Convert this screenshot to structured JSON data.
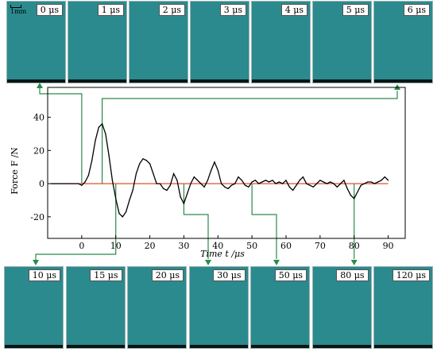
{
  "scale_label": "1mm",
  "top_frames": [
    {
      "label": "0 μs"
    },
    {
      "label": "1 μs"
    },
    {
      "label": "2 μs"
    },
    {
      "label": "3 μs"
    },
    {
      "label": "4 μs"
    },
    {
      "label": "5 μs"
    },
    {
      "label": "6 μs"
    }
  ],
  "bottom_frames": [
    {
      "label": "10 μs"
    },
    {
      "label": "15 μs"
    },
    {
      "label": "20 μs"
    },
    {
      "label": "30 μs"
    },
    {
      "label": "50 μs"
    },
    {
      "label": "80 μs"
    },
    {
      "label": "120 μs"
    }
  ],
  "chart_data": {
    "type": "line",
    "xlabel": "Time t /μs",
    "ylabel": "Force F /N",
    "xlim": [
      -10,
      95
    ],
    "ylim": [
      -33,
      58
    ],
    "xticks": [
      0,
      10,
      20,
      30,
      40,
      50,
      60,
      70,
      80,
      90
    ],
    "yticks": [
      -20,
      0,
      20,
      40
    ],
    "colors": {
      "series": "#000000",
      "zero_line": "#e0502a",
      "arrows": "#2a8a4a"
    },
    "series": [
      {
        "x": [
          -9,
          -4,
          -1,
          0,
          1,
          2,
          3,
          4,
          5,
          6,
          7,
          8,
          9,
          10,
          11,
          12,
          13,
          14,
          15,
          16,
          17,
          18,
          19,
          20,
          21,
          22,
          23,
          24,
          25,
          26,
          27,
          28,
          29,
          30,
          31,
          32,
          33,
          34,
          35,
          36,
          37,
          38,
          39,
          40,
          41,
          42,
          43,
          44,
          45,
          46,
          47,
          48,
          49,
          50,
          51,
          52,
          53,
          54,
          55,
          56,
          57,
          58,
          59,
          60,
          61,
          62,
          63,
          64,
          65,
          66,
          67,
          68,
          69,
          70,
          71,
          72,
          73,
          74,
          75,
          76,
          77,
          78,
          79,
          80,
          81,
          82,
          83,
          84,
          85,
          86,
          87,
          88,
          89,
          90
        ],
        "y": [
          0,
          0,
          0,
          -1,
          1,
          5,
          14,
          26,
          34,
          36,
          30,
          17,
          2,
          -9,
          -18,
          -20,
          -17,
          -10,
          -4,
          6,
          12,
          15,
          14,
          12,
          6,
          0,
          0,
          -3,
          -4,
          -1,
          6,
          2,
          -8,
          -12,
          -6,
          0,
          4,
          2,
          0,
          -2,
          2,
          8,
          13,
          8,
          0,
          -2,
          -3,
          -1,
          0,
          4,
          2,
          -1,
          -2,
          1,
          2,
          0,
          1,
          2,
          1,
          2,
          0,
          1,
          0,
          2,
          -2,
          -4,
          -1,
          2,
          4,
          0,
          -1,
          -2,
          0,
          2,
          1,
          0,
          1,
          0,
          -2,
          0,
          2,
          -3,
          -7,
          -9,
          -5,
          -1,
          0,
          1,
          1,
          0,
          1,
          2,
          4,
          2
        ]
      }
    ]
  }
}
